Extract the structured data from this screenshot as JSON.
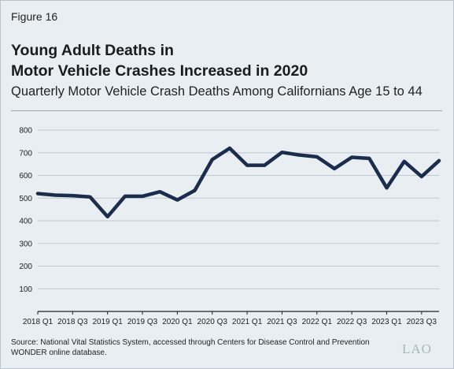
{
  "figure_label": "Figure 16",
  "title_line1": "Young Adult Deaths in",
  "title_line2": "Motor Vehicle Crashes Increased in 2020",
  "subtitle": "Quarterly Motor Vehicle Crash Deaths Among Californians Age 15 to 44",
  "source_line1": "Source: National Vital Statistics System, accessed through Centers for Disease Control and Prevention",
  "source_line2": "WONDER online database.",
  "logo_text": "LAO",
  "colors": {
    "line": "#1b2d4d",
    "gridline": "#bfc8cf",
    "background": "#e8eef2"
  },
  "chart_data": {
    "type": "line",
    "title": "",
    "xlabel": "",
    "ylabel": "",
    "ylim": [
      0,
      800
    ],
    "yticks": [
      100,
      200,
      300,
      400,
      500,
      600,
      700,
      800
    ],
    "grid": true,
    "x": [
      "2018 Q1",
      "2018 Q2",
      "2018 Q3",
      "2018 Q4",
      "2019 Q1",
      "2019 Q2",
      "2019 Q3",
      "2019 Q4",
      "2020 Q1",
      "2020 Q2",
      "2020 Q3",
      "2020 Q4",
      "2021 Q1",
      "2021 Q2",
      "2021 Q3",
      "2021 Q4",
      "2022 Q1",
      "2022 Q2",
      "2022 Q3",
      "2022 Q4",
      "2023 Q1",
      "2023 Q2",
      "2023 Q3",
      "2023 Q4"
    ],
    "xtick_labels": [
      "2018 Q1",
      "2018 Q3",
      "2019 Q1",
      "2019 Q3",
      "2020 Q1",
      "2020 Q3",
      "2021 Q1",
      "2021 Q3",
      "2022 Q1",
      "2022 Q3",
      "2023 Q1",
      "2023 Q3"
    ],
    "series": [
      {
        "values": [
          520,
          513,
          511,
          505,
          418,
          508,
          508,
          528,
          492,
          534,
          670,
          720,
          645,
          645,
          702,
          690,
          682,
          630,
          680,
          675,
          545,
          662,
          595,
          665
        ]
      }
    ]
  }
}
